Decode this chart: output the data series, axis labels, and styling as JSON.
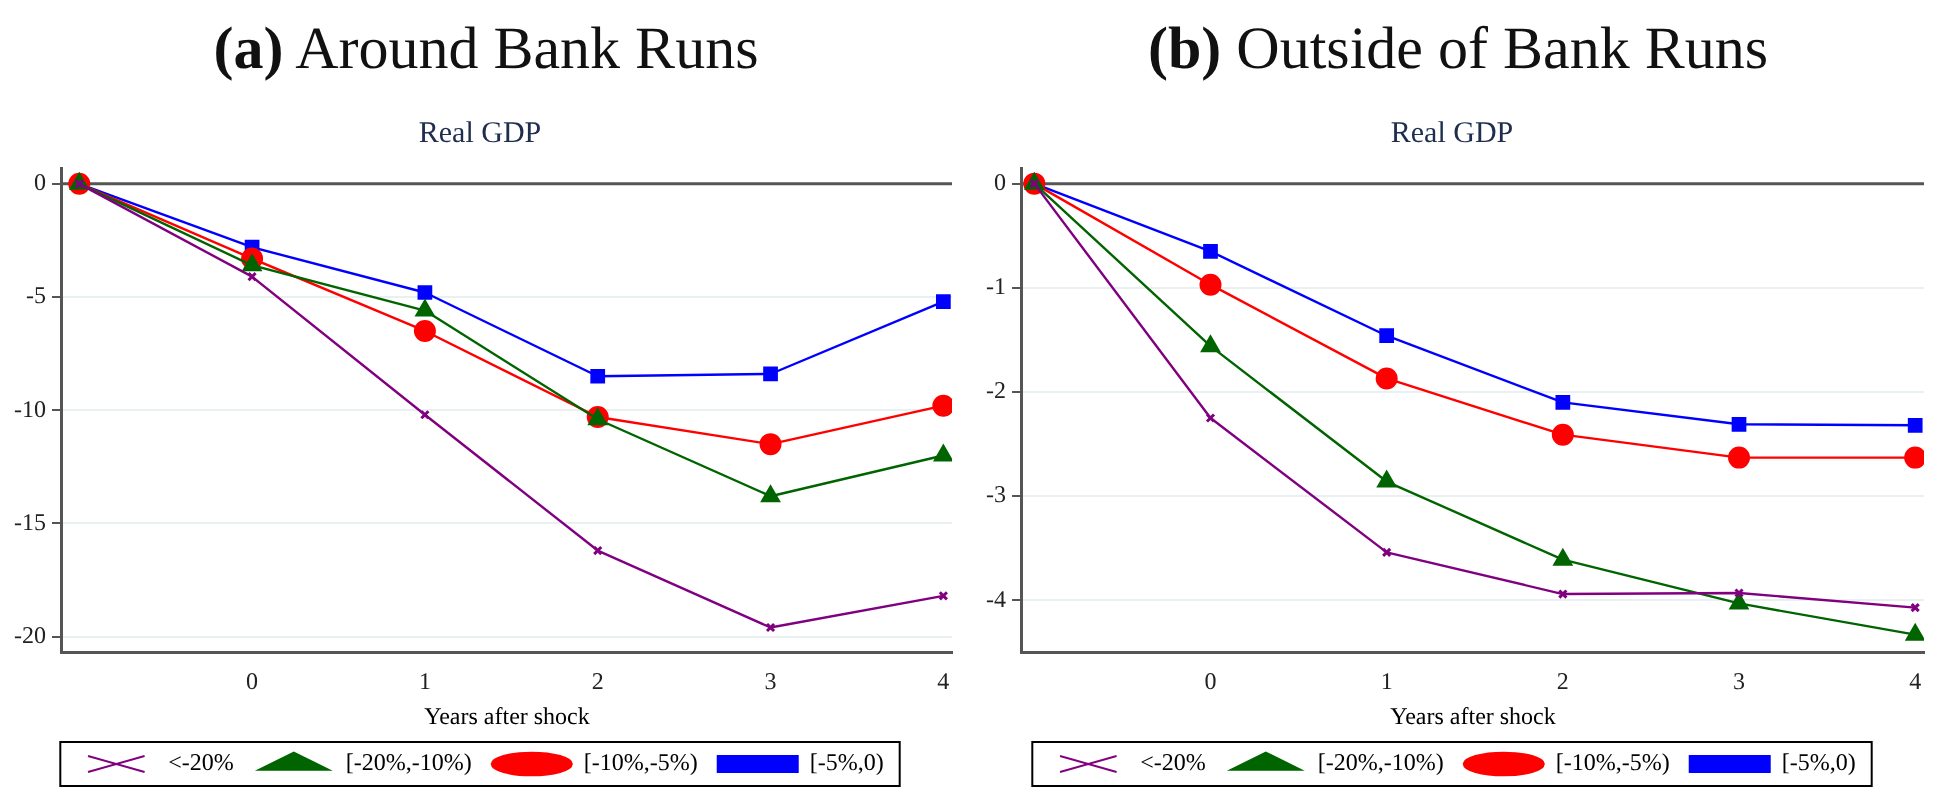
{
  "chart_data": [
    {
      "type": "line",
      "title": "(a) Around Bank Runs",
      "subtitle": "Real GDP",
      "xlabel": "Years after shock",
      "x": [
        -1,
        0,
        1,
        2,
        3,
        4
      ],
      "xlim": [
        -1.1,
        4.05
      ],
      "xticks": [
        0,
        1,
        2,
        3,
        4
      ],
      "ylim": [
        -20.7,
        0.7
      ],
      "yticks": [
        0,
        -5,
        -10,
        -15,
        -20
      ],
      "grid": "y",
      "legend": "bottom",
      "ref_lines": [
        {
          "axis": "y",
          "value": 0,
          "color": "#555555"
        }
      ],
      "series": [
        {
          "name": "<-20%",
          "color": "#800080",
          "marker": "cross",
          "values": [
            0,
            -4.1,
            -10.2,
            -16.2,
            -19.6,
            -18.2
          ]
        },
        {
          "name": "[-20%,-10%)",
          "color": "#006400",
          "marker": "triangle",
          "values": [
            0,
            -3.6,
            -5.6,
            -10.4,
            -13.8,
            -12.0
          ]
        },
        {
          "name": "[-10%,-5%)",
          "color": "#ff0000",
          "marker": "circle",
          "values": [
            0,
            -3.3,
            -6.5,
            -10.3,
            -11.5,
            -9.8
          ]
        },
        {
          "name": "[-5%,0)",
          "color": "#0000ff",
          "marker": "square",
          "values": [
            0,
            -2.8,
            -4.8,
            -8.5,
            -8.4,
            -5.2
          ]
        }
      ]
    },
    {
      "type": "line",
      "title": "(b) Outside of Bank Runs",
      "subtitle": "Real GDP",
      "xlabel": "Years after shock",
      "x": [
        -1,
        0,
        1,
        2,
        3,
        4
      ],
      "xlim": [
        -1.07,
        4.05
      ],
      "xticks": [
        0,
        1,
        2,
        3,
        4
      ],
      "ylim": [
        -4.5,
        0.15
      ],
      "yticks": [
        0,
        -1,
        -2,
        -3,
        -4
      ],
      "grid": "y",
      "legend": "bottom",
      "ref_lines": [
        {
          "axis": "y",
          "value": 0,
          "color": "#555555"
        }
      ],
      "series": [
        {
          "name": "<-20%",
          "color": "#800080",
          "marker": "cross",
          "values": [
            0,
            -2.25,
            -3.54,
            -3.94,
            -3.93,
            -4.07
          ]
        },
        {
          "name": "[-20%,-10%)",
          "color": "#006400",
          "marker": "triangle",
          "values": [
            0,
            -1.56,
            -2.86,
            -3.61,
            -4.03,
            -4.33
          ]
        },
        {
          "name": "[-10%,-5%)",
          "color": "#ff0000",
          "marker": "circle",
          "values": [
            0,
            -0.97,
            -1.87,
            -2.41,
            -2.63,
            -2.63
          ]
        },
        {
          "name": "[-5%,0)",
          "color": "#0000ff",
          "marker": "square",
          "values": [
            0,
            -0.65,
            -1.46,
            -2.1,
            -2.31,
            -2.32
          ]
        }
      ]
    }
  ]
}
